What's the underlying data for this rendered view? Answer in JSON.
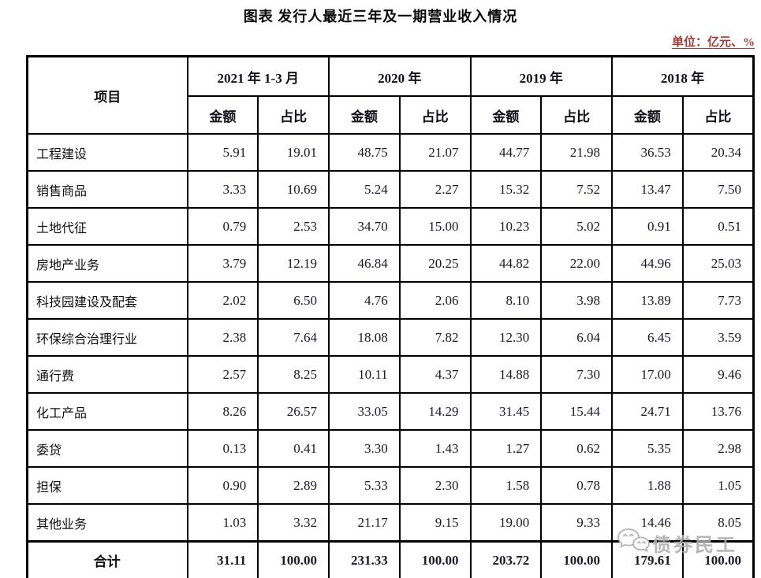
{
  "title": "图表 发行人最近三年及一期营业收入情况",
  "unit_label": "单位：亿元、%",
  "watermark": {
    "text": "债券民工",
    "icon": "wechat-icon"
  },
  "colors": {
    "unit_label_red": "#a13a36",
    "table_border": "#000000",
    "watermark_gray": "#acacac"
  },
  "table": {
    "item_header": "项目",
    "period_headers": [
      "2021 年 1-3 月",
      "2020 年",
      "2019 年",
      "2018 年"
    ],
    "sub_headers": [
      "金额",
      "占比"
    ],
    "rows": [
      {
        "item": "工程建设",
        "values": [
          "5.91",
          "19.01",
          "48.75",
          "21.07",
          "44.77",
          "21.98",
          "36.53",
          "20.34"
        ]
      },
      {
        "item": "销售商品",
        "values": [
          "3.33",
          "10.69",
          "5.24",
          "2.27",
          "15.32",
          "7.52",
          "13.47",
          "7.50"
        ]
      },
      {
        "item": "土地代征",
        "values": [
          "0.79",
          "2.53",
          "34.70",
          "15.00",
          "10.23",
          "5.02",
          "0.91",
          "0.51"
        ]
      },
      {
        "item": "房地产业务",
        "values": [
          "3.79",
          "12.19",
          "46.84",
          "20.25",
          "44.82",
          "22.00",
          "44.96",
          "25.03"
        ]
      },
      {
        "item": "科技园建设及配套",
        "values": [
          "2.02",
          "6.50",
          "4.76",
          "2.06",
          "8.10",
          "3.98",
          "13.89",
          "7.73"
        ]
      },
      {
        "item": "环保综合治理行业",
        "values": [
          "2.38",
          "7.64",
          "18.08",
          "7.82",
          "12.30",
          "6.04",
          "6.45",
          "3.59"
        ]
      },
      {
        "item": "通行费",
        "values": [
          "2.57",
          "8.25",
          "10.11",
          "4.37",
          "14.88",
          "7.30",
          "17.00",
          "9.46"
        ]
      },
      {
        "item": "化工产品",
        "values": [
          "8.26",
          "26.57",
          "33.05",
          "14.29",
          "31.45",
          "15.44",
          "24.71",
          "13.76"
        ]
      },
      {
        "item": "委贷",
        "values": [
          "0.13",
          "0.41",
          "3.30",
          "1.43",
          "1.27",
          "0.62",
          "5.35",
          "2.98"
        ]
      },
      {
        "item": "担保",
        "values": [
          "0.90",
          "2.89",
          "5.33",
          "2.30",
          "1.58",
          "0.78",
          "1.88",
          "1.05"
        ]
      },
      {
        "item": "其他业务",
        "values": [
          "1.03",
          "3.32",
          "21.17",
          "9.15",
          "19.00",
          "9.33",
          "14.46",
          "8.05"
        ]
      }
    ],
    "total_row": {
      "item": "合计",
      "values": [
        "31.11",
        "100.00",
        "231.33",
        "100.00",
        "203.72",
        "100.00",
        "179.61",
        "100.00"
      ]
    }
  }
}
